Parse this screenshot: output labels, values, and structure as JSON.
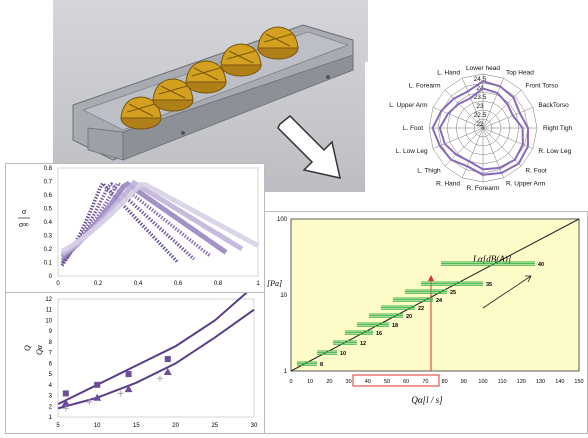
{
  "radar": {
    "categories": [
      "Lower head",
      "Top Head",
      "Front Torso",
      "BackTorso",
      "Right Tigh",
      "R. Low Leg",
      "R. Foot",
      "R. Upper Arm",
      "R. Forearm",
      "R. Hand",
      "L. Thigh",
      "L. Low Leg",
      "L. Foot",
      "L. Upper Arm",
      "L. Forearm",
      "L. Hand"
    ],
    "ticks": [
      "24.5",
      "24",
      "23.5",
      "23",
      "22.5",
      "22"
    ],
    "range": [
      22,
      24.5
    ],
    "series": [
      {
        "values": [
          24.1,
          24.0,
          23.9,
          23.7,
          24.0,
          24.2,
          24.3,
          24.2,
          24.1,
          23.8,
          24.0,
          24.1,
          24.3,
          24.0,
          23.8,
          23.7
        ]
      },
      {
        "values": [
          23.7,
          23.6,
          23.4,
          23.3,
          23.7,
          23.9,
          24.0,
          23.9,
          23.8,
          23.5,
          23.6,
          23.8,
          23.9,
          23.6,
          23.4,
          23.3
        ]
      }
    ]
  },
  "top_plot": {
    "ylabel_top": "σ",
    "ylabel_bot": "σ∞",
    "y_ticks": [
      "0",
      "0.1",
      "0.2",
      "0.3",
      "0.4",
      "0.5",
      "0.6",
      "0.7",
      "0.8"
    ],
    "x_ticks": [
      "0",
      "0.2",
      "0.4",
      "0.6",
      "0.8",
      "1"
    ]
  },
  "bottom_plot": {
    "ylabel_top": "Q",
    "ylabel_bot": "Qα",
    "y_ticks": [
      "1",
      "2",
      "3",
      "4",
      "5",
      "6",
      "7",
      "8",
      "9",
      "10",
      "11",
      "12"
    ],
    "x_ticks": [
      "5",
      "10",
      "15",
      "20",
      "25",
      "30"
    ]
  },
  "log_plot": {
    "ylabel": "[Pa]",
    "annot": "Lα[dB(A)]",
    "xlabel": "Qα[l / s]",
    "y_ticks": [
      "1",
      "10",
      "100"
    ],
    "x_ticks": [
      "0",
      "10",
      "20",
      "30",
      "40",
      "50",
      "60",
      "70",
      "80",
      "90",
      "100",
      "110",
      "120",
      "130",
      "140",
      "150"
    ],
    "bar_labels": [
      "8",
      "10",
      "12",
      "16",
      "18",
      "20",
      "22",
      "24",
      "25",
      "35",
      "40"
    ],
    "highlight_color": "#e03030"
  }
}
